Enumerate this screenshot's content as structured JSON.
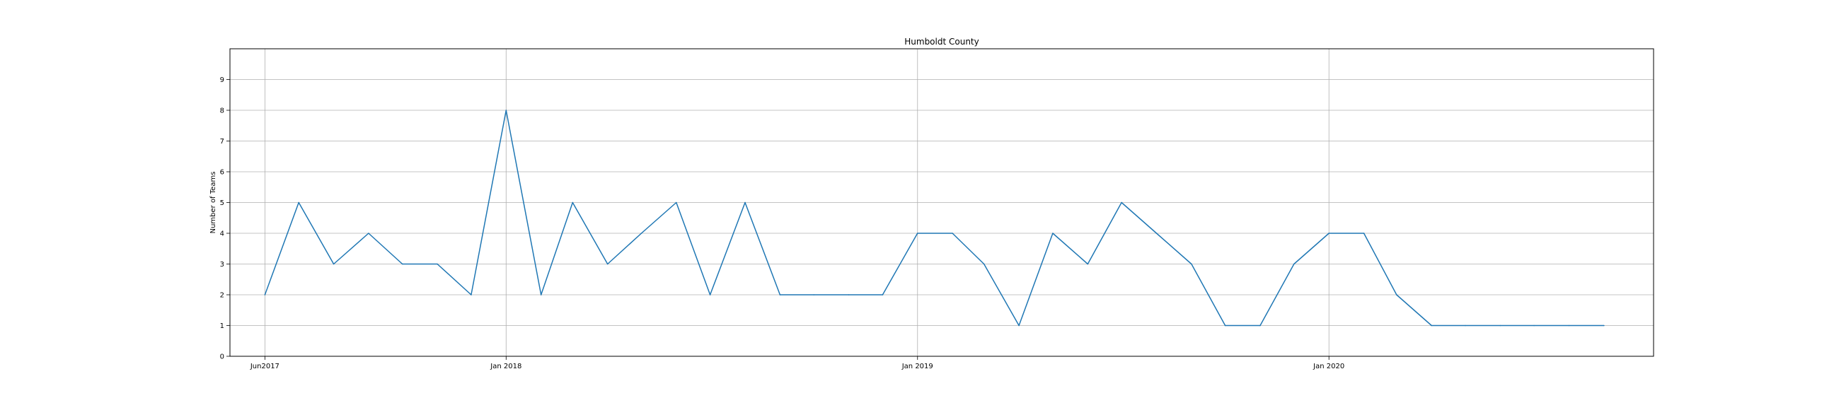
{
  "chart_data": {
    "type": "line",
    "title": "Humboldt County",
    "xlabel": "",
    "ylabel": "Number of Teams",
    "ylim": [
      0,
      10
    ],
    "yticks": [
      0,
      1,
      2,
      3,
      4,
      5,
      6,
      7,
      8,
      9
    ],
    "xlim": [
      "2017-05-01",
      "2020-10-15"
    ],
    "xticks": [
      {
        "date": "2017-06-01",
        "label": "Jun2017"
      },
      {
        "date": "2018-01-01",
        "label": "Jan 2018"
      },
      {
        "date": "2019-01-01",
        "label": "Jan 2019"
      },
      {
        "date": "2020-01-01",
        "label": "Jan 2020"
      }
    ],
    "grid": true,
    "series": [
      {
        "color": "#1f77b4",
        "x": [
          "2017-06-01",
          "2017-07-01",
          "2017-08-01",
          "2017-09-01",
          "2017-10-01",
          "2017-11-01",
          "2017-12-01",
          "2018-01-01",
          "2018-02-01",
          "2018-03-01",
          "2018-04-01",
          "2018-05-01",
          "2018-06-01",
          "2018-07-01",
          "2018-08-01",
          "2018-09-01",
          "2018-10-01",
          "2018-11-01",
          "2018-12-01",
          "2019-01-01",
          "2019-02-01",
          "2019-03-01",
          "2019-04-01",
          "2019-05-01",
          "2019-06-01",
          "2019-07-01",
          "2019-08-01",
          "2019-09-01",
          "2019-10-01",
          "2019-11-01",
          "2019-12-01",
          "2020-01-01",
          "2020-02-01",
          "2020-03-01",
          "2020-04-01",
          "2020-05-01",
          "2020-06-01",
          "2020-07-01",
          "2020-08-01",
          "2020-09-01"
        ],
        "values": [
          2,
          5,
          3,
          4,
          3,
          3,
          2,
          8,
          2,
          5,
          3,
          4,
          5,
          2,
          5,
          2,
          2,
          2,
          2,
          4,
          4,
          3,
          1,
          4,
          3,
          5,
          4,
          3,
          1,
          1,
          3,
          4,
          4,
          2,
          1,
          1,
          1,
          1,
          1,
          1
        ]
      }
    ]
  }
}
